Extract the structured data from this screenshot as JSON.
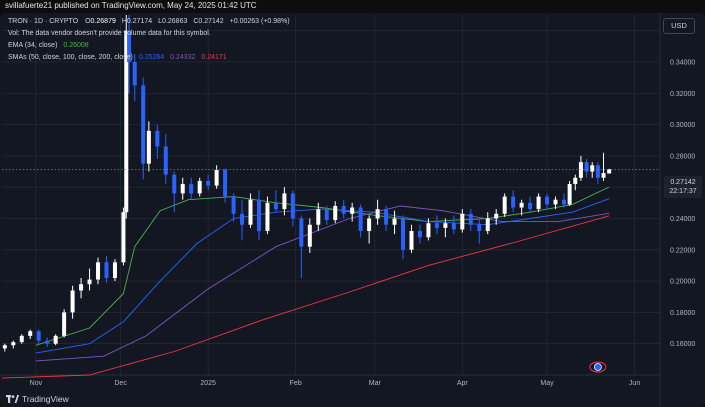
{
  "header": {
    "text": "svillafuerte21 published on TradingView.com, May 24, 2025 01:42 UTC"
  },
  "legend": {
    "symbol": "TRON · 1D · CRYPTO",
    "open_label": "O",
    "open": "0.26879",
    "high_label": "H",
    "high": "0.27174",
    "low_label": "L",
    "low": "0.26863",
    "close_label": "C",
    "close": "0.27142",
    "change": "+0.00263 (+0.98%)",
    "vol_note": "Vol: The data vendor doesn't provide volume data for this symbol.",
    "ema_label": "EMA (34, close)",
    "ema_value": "0.26008",
    "sma_label": "SMAs (50, close, 100, close, 200, close)",
    "sma50_value": "0.25264",
    "sma100_value": "0.24332",
    "sma200_value": "0.24171"
  },
  "currency_button": "USD",
  "price_tag": {
    "price": "0.27142",
    "countdown": "22:17:37"
  },
  "footer_brand": "TradingView",
  "colors": {
    "up": "#ffffff",
    "down": "#2962ff",
    "ema": "#4caf50",
    "sma50": "#2962ff",
    "sma100": "#7e57c2",
    "sma200": "#f23645",
    "background": "#131722",
    "grid": "#2a2e39"
  },
  "chart_data": {
    "type": "candlestick",
    "y_axis": {
      "position": "right",
      "ylim": [
        0.14,
        0.37
      ],
      "ticks": [
        "0.16000",
        "0.18000",
        "0.20000",
        "0.22000",
        "0.24000",
        "0.26000",
        "0.28000",
        "0.30000",
        "0.32000",
        "0.34000",
        "0.36000"
      ]
    },
    "x_axis": {
      "labels": [
        "Nov",
        "Dec",
        "2025",
        "Feb",
        "Mar",
        "Apr",
        "May",
        "Jun"
      ],
      "label_dates": [
        "2024-11-01",
        "2024-12-01",
        "2025-01-01",
        "2025-02-01",
        "2025-03-01",
        "2025-04-01",
        "2025-05-01",
        "2025-06-01"
      ],
      "range": [
        "2024-10-20",
        "2025-06-10"
      ]
    },
    "grid": true,
    "last_price": 0.27142,
    "candles": [
      {
        "date": "2024-10-21",
        "o": 0.157,
        "h": 0.16,
        "l": 0.155,
        "c": 0.159
      },
      {
        "date": "2024-10-24",
        "o": 0.159,
        "h": 0.162,
        "l": 0.157,
        "c": 0.161
      },
      {
        "date": "2024-10-27",
        "o": 0.161,
        "h": 0.166,
        "l": 0.16,
        "c": 0.165
      },
      {
        "date": "2024-10-30",
        "o": 0.165,
        "h": 0.169,
        "l": 0.163,
        "c": 0.168
      },
      {
        "date": "2024-11-02",
        "o": 0.168,
        "h": 0.169,
        "l": 0.16,
        "c": 0.162
      },
      {
        "date": "2024-11-05",
        "o": 0.162,
        "h": 0.164,
        "l": 0.158,
        "c": 0.16
      },
      {
        "date": "2024-11-08",
        "o": 0.16,
        "h": 0.166,
        "l": 0.159,
        "c": 0.165
      },
      {
        "date": "2024-11-11",
        "o": 0.165,
        "h": 0.182,
        "l": 0.164,
        "c": 0.18
      },
      {
        "date": "2024-11-14",
        "o": 0.18,
        "h": 0.197,
        "l": 0.176,
        "c": 0.194
      },
      {
        "date": "2024-11-17",
        "o": 0.194,
        "h": 0.202,
        "l": 0.189,
        "c": 0.198
      },
      {
        "date": "2024-11-20",
        "o": 0.198,
        "h": 0.208,
        "l": 0.194,
        "c": 0.201
      },
      {
        "date": "2024-11-23",
        "o": 0.201,
        "h": 0.215,
        "l": 0.198,
        "c": 0.212
      },
      {
        "date": "2024-11-26",
        "o": 0.212,
        "h": 0.216,
        "l": 0.199,
        "c": 0.202
      },
      {
        "date": "2024-11-29",
        "o": 0.202,
        "h": 0.214,
        "l": 0.2,
        "c": 0.212
      },
      {
        "date": "2024-12-02",
        "o": 0.212,
        "h": 0.247,
        "l": 0.21,
        "c": 0.244
      },
      {
        "date": "2024-12-03",
        "o": 0.244,
        "h": 0.449,
        "l": 0.24,
        "c": 0.36
      },
      {
        "date": "2024-12-04",
        "o": 0.36,
        "h": 0.37,
        "l": 0.32,
        "c": 0.34
      },
      {
        "date": "2024-12-06",
        "o": 0.34,
        "h": 0.345,
        "l": 0.315,
        "c": 0.325
      },
      {
        "date": "2024-12-09",
        "o": 0.325,
        "h": 0.33,
        "l": 0.265,
        "c": 0.275
      },
      {
        "date": "2024-12-11",
        "o": 0.275,
        "h": 0.302,
        "l": 0.27,
        "c": 0.296
      },
      {
        "date": "2024-12-14",
        "o": 0.296,
        "h": 0.3,
        "l": 0.278,
        "c": 0.286
      },
      {
        "date": "2024-12-17",
        "o": 0.286,
        "h": 0.294,
        "l": 0.262,
        "c": 0.268
      },
      {
        "date": "2024-12-20",
        "o": 0.268,
        "h": 0.27,
        "l": 0.244,
        "c": 0.256
      },
      {
        "date": "2024-12-23",
        "o": 0.256,
        "h": 0.266,
        "l": 0.252,
        "c": 0.262
      },
      {
        "date": "2024-12-26",
        "o": 0.262,
        "h": 0.266,
        "l": 0.252,
        "c": 0.256
      },
      {
        "date": "2024-12-29",
        "o": 0.256,
        "h": 0.266,
        "l": 0.254,
        "c": 0.264
      },
      {
        "date": "2025-01-01",
        "o": 0.264,
        "h": 0.268,
        "l": 0.258,
        "c": 0.261
      },
      {
        "date": "2025-01-04",
        "o": 0.261,
        "h": 0.274,
        "l": 0.259,
        "c": 0.271
      },
      {
        "date": "2025-01-07",
        "o": 0.271,
        "h": 0.272,
        "l": 0.25,
        "c": 0.254
      },
      {
        "date": "2025-01-10",
        "o": 0.254,
        "h": 0.256,
        "l": 0.238,
        "c": 0.243
      },
      {
        "date": "2025-01-13",
        "o": 0.243,
        "h": 0.252,
        "l": 0.226,
        "c": 0.236
      },
      {
        "date": "2025-01-16",
        "o": 0.236,
        "h": 0.256,
        "l": 0.234,
        "c": 0.252
      },
      {
        "date": "2025-01-19",
        "o": 0.252,
        "h": 0.258,
        "l": 0.226,
        "c": 0.232
      },
      {
        "date": "2025-01-22",
        "o": 0.232,
        "h": 0.254,
        "l": 0.23,
        "c": 0.25
      },
      {
        "date": "2025-01-25",
        "o": 0.25,
        "h": 0.258,
        "l": 0.244,
        "c": 0.246
      },
      {
        "date": "2025-01-28",
        "o": 0.246,
        "h": 0.26,
        "l": 0.242,
        "c": 0.256
      },
      {
        "date": "2025-01-31",
        "o": 0.256,
        "h": 0.258,
        "l": 0.235,
        "c": 0.24
      },
      {
        "date": "2025-02-03",
        "o": 0.24,
        "h": 0.242,
        "l": 0.202,
        "c": 0.222
      },
      {
        "date": "2025-02-06",
        "o": 0.222,
        "h": 0.24,
        "l": 0.218,
        "c": 0.236
      },
      {
        "date": "2025-02-09",
        "o": 0.236,
        "h": 0.25,
        "l": 0.232,
        "c": 0.246
      },
      {
        "date": "2025-02-12",
        "o": 0.246,
        "h": 0.248,
        "l": 0.236,
        "c": 0.239
      },
      {
        "date": "2025-02-15",
        "o": 0.239,
        "h": 0.251,
        "l": 0.237,
        "c": 0.248
      },
      {
        "date": "2025-02-18",
        "o": 0.248,
        "h": 0.252,
        "l": 0.24,
        "c": 0.243
      },
      {
        "date": "2025-02-21",
        "o": 0.243,
        "h": 0.25,
        "l": 0.238,
        "c": 0.247
      },
      {
        "date": "2025-02-24",
        "o": 0.247,
        "h": 0.249,
        "l": 0.228,
        "c": 0.232
      },
      {
        "date": "2025-02-27",
        "o": 0.232,
        "h": 0.242,
        "l": 0.224,
        "c": 0.24
      },
      {
        "date": "2025-03-02",
        "o": 0.24,
        "h": 0.252,
        "l": 0.236,
        "c": 0.246
      },
      {
        "date": "2025-03-05",
        "o": 0.246,
        "h": 0.248,
        "l": 0.232,
        "c": 0.236
      },
      {
        "date": "2025-03-08",
        "o": 0.236,
        "h": 0.245,
        "l": 0.23,
        "c": 0.24
      },
      {
        "date": "2025-03-11",
        "o": 0.24,
        "h": 0.242,
        "l": 0.214,
        "c": 0.22
      },
      {
        "date": "2025-03-14",
        "o": 0.22,
        "h": 0.236,
        "l": 0.218,
        "c": 0.232
      },
      {
        "date": "2025-03-17",
        "o": 0.232,
        "h": 0.236,
        "l": 0.224,
        "c": 0.228
      },
      {
        "date": "2025-03-20",
        "o": 0.228,
        "h": 0.24,
        "l": 0.226,
        "c": 0.237
      },
      {
        "date": "2025-03-23",
        "o": 0.237,
        "h": 0.242,
        "l": 0.23,
        "c": 0.234
      },
      {
        "date": "2025-03-26",
        "o": 0.234,
        "h": 0.24,
        "l": 0.228,
        "c": 0.237
      },
      {
        "date": "2025-03-29",
        "o": 0.237,
        "h": 0.242,
        "l": 0.23,
        "c": 0.233
      },
      {
        "date": "2025-04-01",
        "o": 0.233,
        "h": 0.246,
        "l": 0.231,
        "c": 0.243
      },
      {
        "date": "2025-04-04",
        "o": 0.243,
        "h": 0.246,
        "l": 0.232,
        "c": 0.236
      },
      {
        "date": "2025-04-07",
        "o": 0.236,
        "h": 0.24,
        "l": 0.224,
        "c": 0.232
      },
      {
        "date": "2025-04-10",
        "o": 0.232,
        "h": 0.244,
        "l": 0.23,
        "c": 0.24
      },
      {
        "date": "2025-04-13",
        "o": 0.24,
        "h": 0.246,
        "l": 0.236,
        "c": 0.243
      },
      {
        "date": "2025-04-16",
        "o": 0.243,
        "h": 0.256,
        "l": 0.241,
        "c": 0.254
      },
      {
        "date": "2025-04-19",
        "o": 0.254,
        "h": 0.258,
        "l": 0.244,
        "c": 0.247
      },
      {
        "date": "2025-04-22",
        "o": 0.247,
        "h": 0.252,
        "l": 0.242,
        "c": 0.25
      },
      {
        "date": "2025-04-25",
        "o": 0.25,
        "h": 0.254,
        "l": 0.244,
        "c": 0.246
      },
      {
        "date": "2025-04-28",
        "o": 0.246,
        "h": 0.256,
        "l": 0.244,
        "c": 0.254
      },
      {
        "date": "2025-05-01",
        "o": 0.254,
        "h": 0.256,
        "l": 0.246,
        "c": 0.249
      },
      {
        "date": "2025-05-04",
        "o": 0.249,
        "h": 0.254,
        "l": 0.246,
        "c": 0.252
      },
      {
        "date": "2025-05-07",
        "o": 0.252,
        "h": 0.256,
        "l": 0.247,
        "c": 0.249
      },
      {
        "date": "2025-05-09",
        "o": 0.249,
        "h": 0.264,
        "l": 0.248,
        "c": 0.262
      },
      {
        "date": "2025-05-11",
        "o": 0.262,
        "h": 0.268,
        "l": 0.258,
        "c": 0.266
      },
      {
        "date": "2025-05-13",
        "o": 0.266,
        "h": 0.28,
        "l": 0.264,
        "c": 0.276
      },
      {
        "date": "2025-05-15",
        "o": 0.276,
        "h": 0.278,
        "l": 0.266,
        "c": 0.27
      },
      {
        "date": "2025-05-17",
        "o": 0.27,
        "h": 0.276,
        "l": 0.266,
        "c": 0.274
      },
      {
        "date": "2025-05-19",
        "o": 0.274,
        "h": 0.276,
        "l": 0.262,
        "c": 0.266
      },
      {
        "date": "2025-05-21",
        "o": 0.266,
        "h": 0.282,
        "l": 0.264,
        "c": 0.269
      },
      {
        "date": "2025-05-23",
        "o": 0.26879,
        "h": 0.27174,
        "l": 0.26863,
        "c": 0.27142
      }
    ],
    "series": [
      {
        "name": "EMA (34, close)",
        "color": "#4caf50",
        "points": [
          [
            "2024-11-01",
            0.159
          ],
          [
            "2024-11-20",
            0.17
          ],
          [
            "2024-12-02",
            0.192
          ],
          [
            "2024-12-06",
            0.222
          ],
          [
            "2024-12-15",
            0.245
          ],
          [
            "2024-12-25",
            0.252
          ],
          [
            "2025-01-10",
            0.254
          ],
          [
            "2025-01-25",
            0.25
          ],
          [
            "2025-02-10",
            0.247
          ],
          [
            "2025-03-01",
            0.242
          ],
          [
            "2025-03-20",
            0.238
          ],
          [
            "2025-04-10",
            0.24
          ],
          [
            "2025-04-25",
            0.244
          ],
          [
            "2025-05-10",
            0.249
          ],
          [
            "2025-05-23",
            0.26008
          ]
        ]
      },
      {
        "name": "SMA 50",
        "color": "#2962ff",
        "points": [
          [
            "2024-11-01",
            0.154
          ],
          [
            "2024-11-20",
            0.16
          ],
          [
            "2024-12-02",
            0.174
          ],
          [
            "2024-12-15",
            0.2
          ],
          [
            "2024-12-28",
            0.224
          ],
          [
            "2025-01-10",
            0.24
          ],
          [
            "2025-01-25",
            0.244
          ],
          [
            "2025-02-10",
            0.246
          ],
          [
            "2025-03-01",
            0.244
          ],
          [
            "2025-03-20",
            0.238
          ],
          [
            "2025-04-10",
            0.236
          ],
          [
            "2025-04-25",
            0.24
          ],
          [
            "2025-05-10",
            0.244
          ],
          [
            "2025-05-23",
            0.25264
          ]
        ]
      },
      {
        "name": "SMA 100",
        "color": "#7e57c2",
        "points": [
          [
            "2024-11-01",
            0.149
          ],
          [
            "2024-11-25",
            0.152
          ],
          [
            "2024-12-10",
            0.165
          ],
          [
            "2025-01-01",
            0.195
          ],
          [
            "2025-01-25",
            0.222
          ],
          [
            "2025-02-20",
            0.24
          ],
          [
            "2025-03-10",
            0.248
          ],
          [
            "2025-03-25",
            0.245
          ],
          [
            "2025-04-15",
            0.238
          ],
          [
            "2025-05-05",
            0.238
          ],
          [
            "2025-05-23",
            0.24332
          ]
        ]
      },
      {
        "name": "SMA 200",
        "color": "#f23645",
        "points": [
          [
            "2024-10-20",
            0.138
          ],
          [
            "2024-11-20",
            0.14
          ],
          [
            "2024-12-20",
            0.155
          ],
          [
            "2025-01-20",
            0.175
          ],
          [
            "2025-02-20",
            0.193
          ],
          [
            "2025-03-20",
            0.21
          ],
          [
            "2025-04-20",
            0.225
          ],
          [
            "2025-05-23",
            0.24171
          ]
        ]
      }
    ]
  }
}
